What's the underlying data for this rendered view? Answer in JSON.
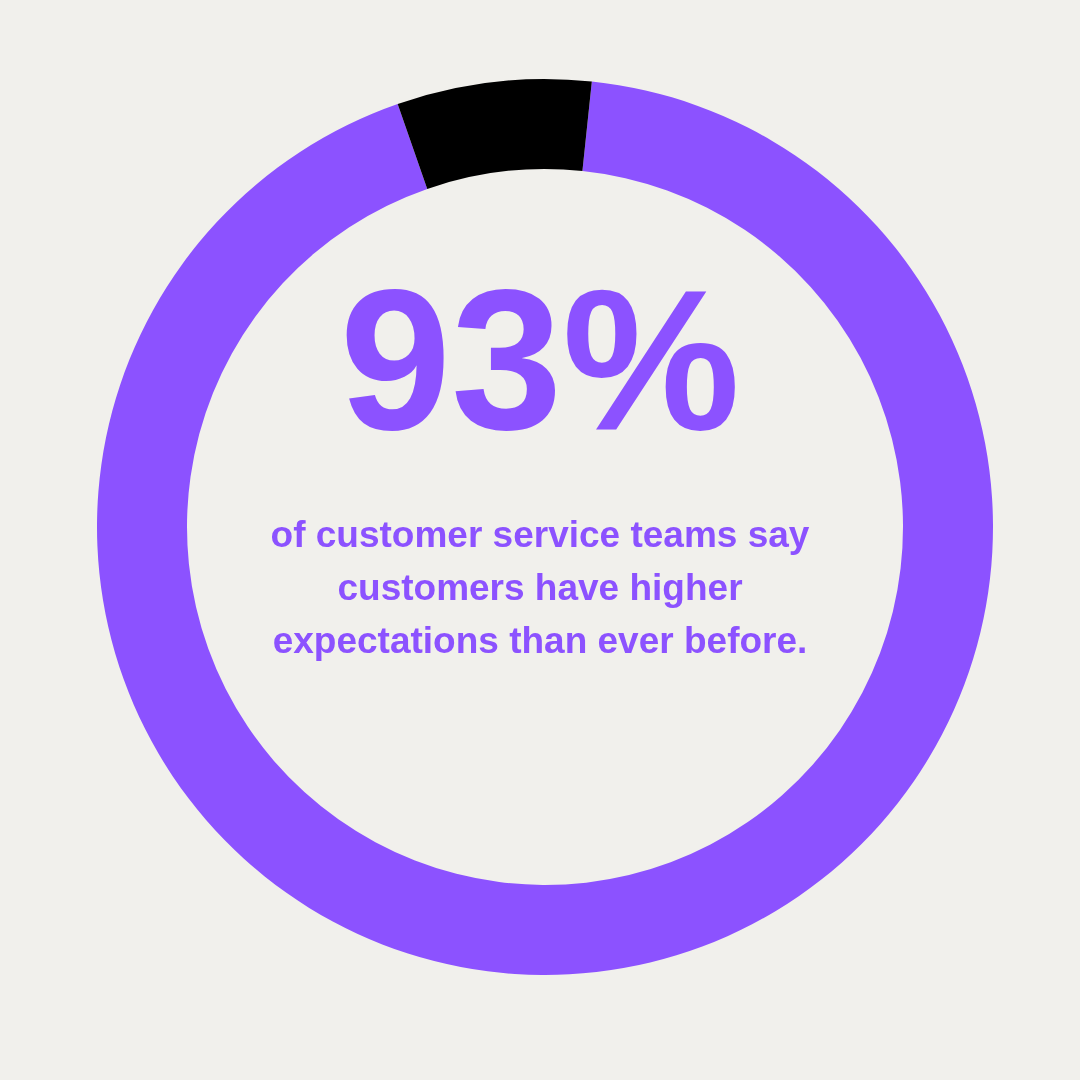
{
  "chart_data": {
    "type": "donut",
    "title": "93%",
    "subtitle": "of customer service teams say customers have higher expectations than ever before.",
    "categories": [
      null,
      null
    ],
    "values": [
      93,
      7
    ],
    "colors": [
      "#8c52ff",
      "#000000"
    ]
  }
}
